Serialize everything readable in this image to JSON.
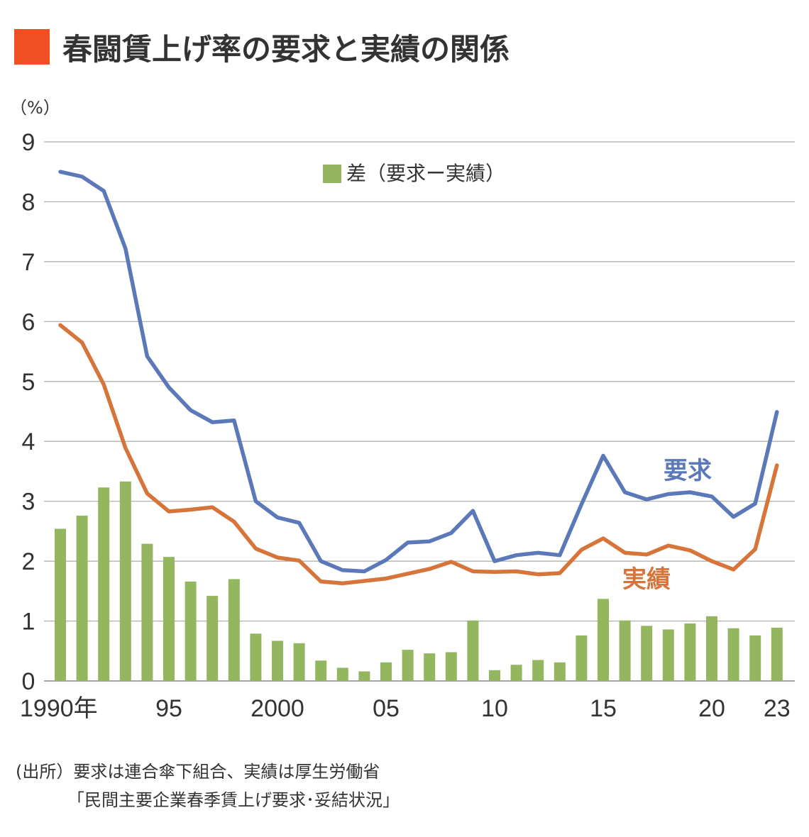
{
  "title": "春闘賃上げ率の要求と実績の関係",
  "colors": {
    "title_square": "#f04e23",
    "demand": "#5b78b8",
    "actual": "#d6743a",
    "diff": "#93b65f",
    "grid": "#aaaaaa",
    "text": "#333333"
  },
  "chart_data": {
    "type": "bar+line",
    "y_unit_label": "（%）",
    "ylim": [
      0,
      9
    ],
    "yticks": [
      "0",
      "1",
      "2",
      "3",
      "4",
      "5",
      "6",
      "7",
      "8",
      "9"
    ],
    "x": [
      1990,
      1991,
      1992,
      1993,
      1994,
      1995,
      1996,
      1997,
      1998,
      1999,
      2000,
      2001,
      2002,
      2003,
      2004,
      2005,
      2006,
      2007,
      2008,
      2009,
      2010,
      2011,
      2012,
      2013,
      2014,
      2015,
      2016,
      2017,
      2018,
      2019,
      2020,
      2021,
      2022,
      2023
    ],
    "xtick_labels": [
      {
        "year": 1990,
        "label": "1990年"
      },
      {
        "year": 1995,
        "label": "95"
      },
      {
        "year": 2000,
        "label": "2000"
      },
      {
        "year": 2005,
        "label": "05"
      },
      {
        "year": 2010,
        "label": "10"
      },
      {
        "year": 2015,
        "label": "15"
      },
      {
        "year": 2020,
        "label": "20"
      },
      {
        "year": 2023,
        "label": "23"
      }
    ],
    "series": [
      {
        "name": "要求",
        "kind": "line",
        "color": "#5b78b8",
        "values": [
          8.5,
          8.42,
          8.18,
          7.22,
          5.42,
          4.9,
          4.52,
          4.32,
          4.35,
          3.0,
          2.73,
          2.64,
          2.0,
          1.85,
          1.83,
          2.02,
          2.31,
          2.33,
          2.47,
          2.84,
          2.0,
          2.1,
          2.14,
          2.1,
          2.95,
          3.76,
          3.15,
          3.03,
          3.12,
          3.15,
          3.08,
          2.74,
          2.96,
          4.49
        ]
      },
      {
        "name": "実績",
        "kind": "line",
        "color": "#d6743a",
        "values": [
          5.94,
          5.65,
          4.95,
          3.89,
          3.13,
          2.83,
          2.86,
          2.9,
          2.66,
          2.21,
          2.06,
          2.01,
          1.66,
          1.63,
          1.67,
          1.71,
          1.79,
          1.87,
          1.99,
          1.83,
          1.82,
          1.83,
          1.78,
          1.8,
          2.19,
          2.38,
          2.14,
          2.11,
          2.26,
          2.18,
          2.0,
          1.86,
          2.2,
          3.6
        ]
      },
      {
        "name": "差（要求ー実績）",
        "kind": "bar",
        "color": "#93b65f",
        "values": [
          2.54,
          2.76,
          3.23,
          3.33,
          2.29,
          2.07,
          1.66,
          1.42,
          1.7,
          0.79,
          0.67,
          0.63,
          0.34,
          0.22,
          0.16,
          0.31,
          0.52,
          0.46,
          0.48,
          1.01,
          0.18,
          0.27,
          0.35,
          0.31,
          0.76,
          1.37,
          1.01,
          0.92,
          0.86,
          0.96,
          1.08,
          0.88,
          0.76,
          0.89
        ]
      }
    ],
    "legend": {
      "label": "差（要求ー実績）",
      "placement": "top-center"
    },
    "annotations": [
      {
        "text": "要求",
        "series": "要求"
      },
      {
        "text": "実績",
        "series": "実績"
      }
    ]
  },
  "source": {
    "line1": "(出所）要求は連合傘下組合、実績は厚生労働省",
    "line2": "「民間主要企業春季賃上げ要求･妥結状況」"
  }
}
